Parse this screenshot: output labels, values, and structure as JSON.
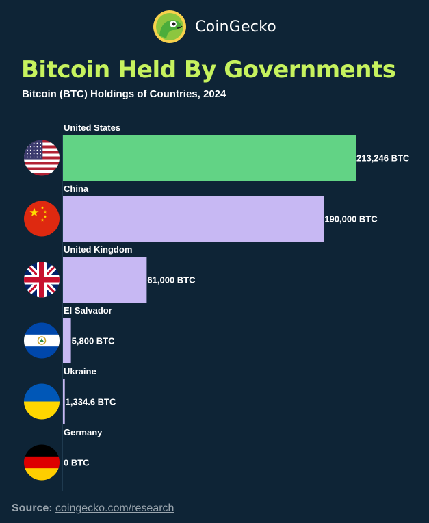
{
  "brand": {
    "name": "CoinGecko",
    "logo_icon": "gecko-logo-icon"
  },
  "chart_data": {
    "type": "bar",
    "orientation": "horizontal",
    "title": "Bitcoin Held By Governments",
    "subtitle": "Bitcoin (BTC) Holdings of Countries, 2024",
    "categories": [
      "United States",
      "China",
      "United Kingdom",
      "El Salvador",
      "Ukraine",
      "Germany"
    ],
    "values": [
      213246,
      190000,
      61000,
      5800,
      1334.6,
      0
    ],
    "value_labels": [
      "213,246 BTC",
      "190,000 BTC",
      "61,000 BTC",
      "5,800 BTC",
      "1,334.6 BTC",
      "0 BTC"
    ],
    "flags": [
      "us-flag-icon",
      "china-flag-icon",
      "uk-flag-icon",
      "el-salvador-flag-icon",
      "ukraine-flag-icon",
      "germany-flag-icon"
    ],
    "bar_colors": [
      "#62d385",
      "#c7b8f3",
      "#c7b8f3",
      "#c7b8f3",
      "#c7b8f3",
      "#c7b8f3"
    ],
    "xlim": [
      0,
      213246
    ],
    "grid": false
  },
  "source": {
    "label": "Source:",
    "link": "coingecko.com/research"
  }
}
